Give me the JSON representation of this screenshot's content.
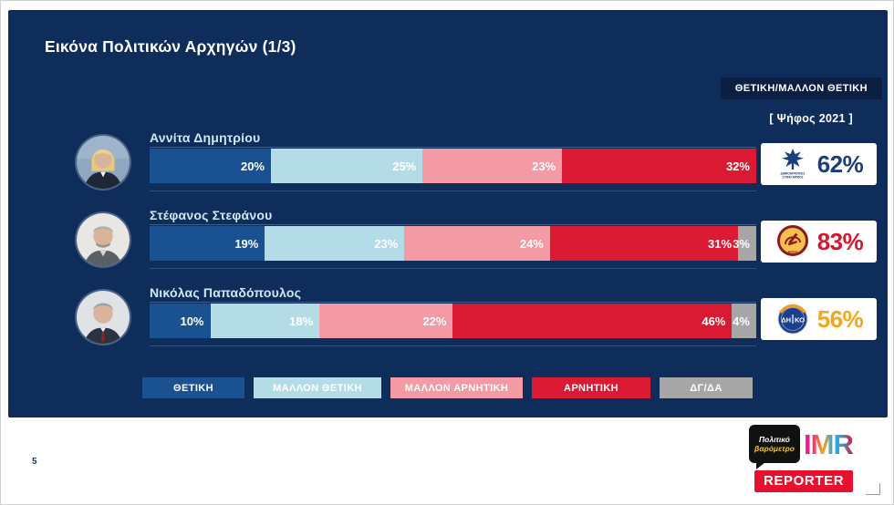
{
  "slide": {
    "title": "Εικόνα Πολιτικών Αρχηγών (1/3)",
    "badge": "ΘΕΤΙΚΗ/ΜΑΛΛΟΝ ΘΕΤΙΚΗ",
    "vote_label": "[ Ψήφος 2021 ]",
    "page_number": "5"
  },
  "chart_data": {
    "type": "bar",
    "variant": "stacked-horizontal",
    "unit": "%",
    "xlim": [
      0,
      100
    ],
    "categories": [
      "ΘΕΤΙΚΗ",
      "ΜΑΛΛΟΝ ΘΕΤΙΚΗ",
      "ΜΑΛΛΟΝ ΑΡΝΗΤΙΚΗ",
      "ΑΡΝΗΤΙΚΗ",
      "ΔΓ/ΔΑ"
    ],
    "colors": [
      "#1a5191",
      "#b3dce6",
      "#f49aa4",
      "#da1a32",
      "#a6a6a6"
    ],
    "legend_position": "bottom",
    "rows": [
      {
        "name": "Αννίτα Δημητρίου",
        "values": [
          20,
          25,
          23,
          32,
          0
        ],
        "party_logo_icon": "disy-bird-emblem",
        "party_caption_line1": "ΔΗΜΟΚΡΑΤΙΚΟΣ",
        "party_caption_line2": "ΣΥΝΑΓΕΡΜΟΣ",
        "vote_2021": "62%",
        "vote_color": "#1c3e7c"
      },
      {
        "name": "Στέφανος Στεφάνου",
        "values": [
          19,
          23,
          24,
          31,
          3
        ],
        "party_logo_icon": "akel-emblem",
        "party_caption_line1": "ΑΚΕΛ",
        "party_caption_line2": "",
        "vote_2021": "83%",
        "vote_color": "#d8142f"
      },
      {
        "name": "Νικόλας Παπαδόπουλος",
        "values": [
          10,
          18,
          22,
          46,
          4
        ],
        "party_logo_icon": "diko-emblem",
        "party_caption_line1": "ΔΗ",
        "party_caption_line2": "ΚΟ",
        "vote_2021": "56%",
        "vote_color": "#f4a71d"
      }
    ]
  },
  "footer": {
    "bubble_line1": "Πολιτικό",
    "bubble_line2": "βαρόμετρο",
    "imr_letters": [
      "I",
      "M",
      "R"
    ],
    "reporter": "REPORTER"
  }
}
